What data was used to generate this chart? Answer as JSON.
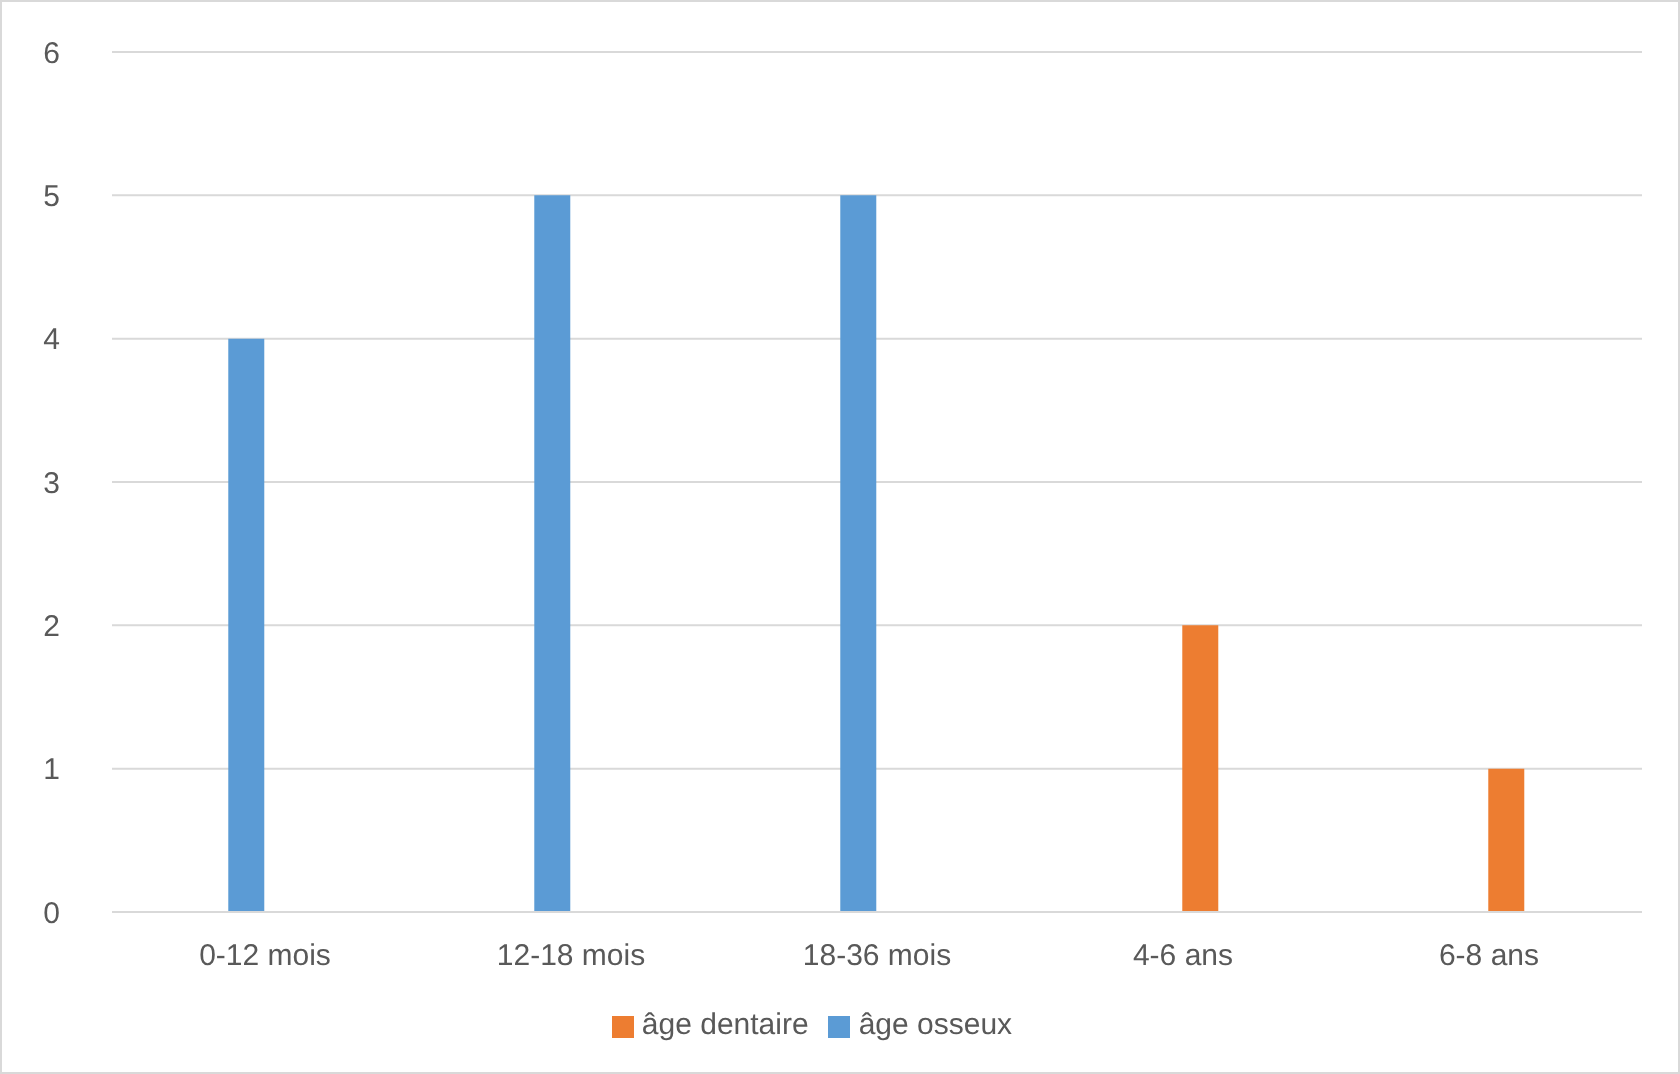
{
  "chart_data": {
    "type": "bar",
    "categories": [
      "0-12 mois",
      "12-18 mois",
      "18-36 mois",
      "4-6 ans",
      "6-8 ans"
    ],
    "series": [
      {
        "name": "âge osseux",
        "color": "#5b9bd5",
        "values": [
          4,
          5,
          5,
          null,
          null
        ]
      },
      {
        "name": "âge dentaire",
        "color": "#ed7d31",
        "values": [
          null,
          null,
          null,
          2,
          1
        ]
      }
    ],
    "ylim": [
      0,
      6
    ],
    "yticks": [
      0,
      1,
      2,
      3,
      4,
      5,
      6
    ],
    "grid": "y",
    "legend": "bottom"
  }
}
